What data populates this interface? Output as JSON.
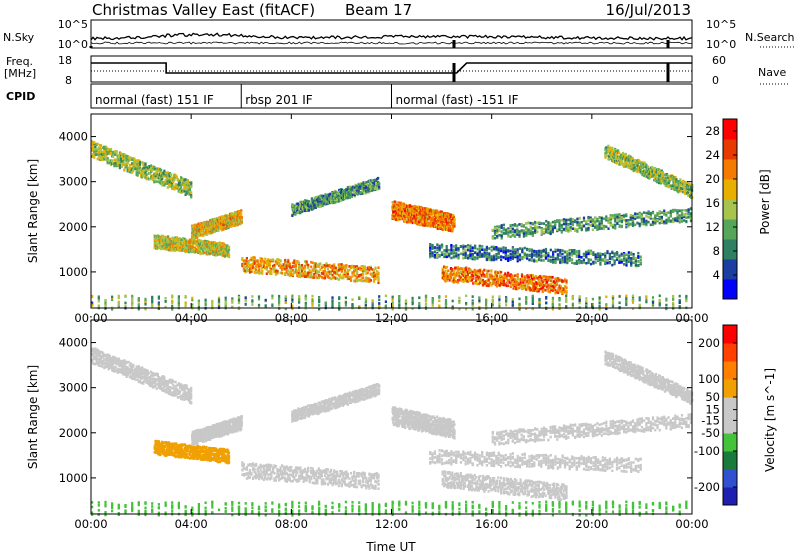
{
  "header": {
    "station": "Christmas Valley East (fitACF)",
    "beam": "Beam 17",
    "date": "16/Jul/2013"
  },
  "top_panels": {
    "nsky_label": "N.Sky",
    "nsky_ticks": [
      "10^5",
      "10^0"
    ],
    "nsearch_label": "N.Search",
    "nsearch_ticks": [
      "10^5",
      "10^0"
    ],
    "freq_label": "Freq.",
    "freq_unit": "[MHz]",
    "freq_ticks": [
      "18",
      "8"
    ],
    "nave_label": "Nave",
    "nave_ticks": [
      "60",
      "0"
    ],
    "cpid_label": "CPID",
    "cpid_segments": [
      {
        "label": "normal (fast) 151 IF",
        "start_h": 0.0,
        "end_h": 6.0
      },
      {
        "label": "rbsp 201 IF",
        "start_h": 6.0,
        "end_h": 12.0
      },
      {
        "label": "normal (fast) -151 IF",
        "start_h": 12.0,
        "end_h": 24.0
      }
    ]
  },
  "colors": {
    "power_scale": [
      "#0000ff",
      "#1a3fa0",
      "#2f7f62",
      "#55a65a",
      "#a7c54e",
      "#e7b000",
      "#f57a00",
      "#e63a00",
      "#ff0000"
    ],
    "velocity_scale": [
      "#2020b0",
      "#3050d0",
      "#1a7a3a",
      "#44c33a",
      "#c8c8c8",
      "#c8c8c8",
      "#f0a000",
      "#ff8000",
      "#ff4000",
      "#ff0000"
    ],
    "axis": "#000000"
  },
  "chart_data": [
    {
      "type": "heatmap",
      "title": "Power",
      "xlabel": "Time UT",
      "ylabel": "Slant Range [km]",
      "xlim_hours": [
        0,
        24
      ],
      "ylim_km": [
        200,
        4500
      ],
      "x_ticks": [
        "00:00",
        "04:00",
        "08:00",
        "12:00",
        "16:00",
        "20:00",
        "00:00"
      ],
      "y_ticks": [
        1000,
        2000,
        3000,
        4000
      ],
      "colorbar": {
        "label": "Power [dB]",
        "ticks": [
          4,
          8,
          12,
          16,
          20,
          24,
          28
        ],
        "range": [
          0,
          30
        ]
      },
      "echo_bands": [
        {
          "t_start": 0.0,
          "t_end": 4.0,
          "r_start": 3750,
          "r_end": 2850,
          "width": 350,
          "value": 14
        },
        {
          "t_start": 2.5,
          "t_end": 5.5,
          "r_start": 1700,
          "r_end": 1500,
          "width": 300,
          "value": 16
        },
        {
          "t_start": 4.0,
          "t_end": 6.0,
          "r_start": 1900,
          "r_end": 2250,
          "width": 300,
          "value": 18
        },
        {
          "t_start": 6.0,
          "t_end": 11.5,
          "r_start": 1200,
          "r_end": 950,
          "width": 350,
          "value": 20
        },
        {
          "t_start": 8.0,
          "t_end": 11.5,
          "r_start": 2400,
          "r_end": 3000,
          "width": 250,
          "value": 10
        },
        {
          "t_start": 12.0,
          "t_end": 14.5,
          "r_start": 2400,
          "r_end": 2100,
          "width": 400,
          "value": 22
        },
        {
          "t_start": 13.5,
          "t_end": 22.0,
          "r_start": 1500,
          "r_end": 1300,
          "width": 300,
          "value": 8
        },
        {
          "t_start": 14.0,
          "t_end": 19.0,
          "r_start": 1000,
          "r_end": 700,
          "width": 350,
          "value": 22
        },
        {
          "t_start": 16.0,
          "t_end": 24.0,
          "r_start": 1900,
          "r_end": 2300,
          "width": 300,
          "value": 10
        },
        {
          "t_start": 20.5,
          "t_end": 24.0,
          "r_start": 3700,
          "r_end": 2800,
          "width": 300,
          "value": 14
        },
        {
          "t_start": 0.0,
          "t_end": 24.0,
          "r_start": 350,
          "r_end": 350,
          "width": 300,
          "value": 12
        }
      ]
    },
    {
      "type": "heatmap",
      "title": "Velocity",
      "xlabel": "Time UT",
      "ylabel": "Slant Range [km]",
      "xlim_hours": [
        0,
        24
      ],
      "ylim_km": [
        200,
        4500
      ],
      "x_ticks": [
        "00:00",
        "04:00",
        "08:00",
        "12:00",
        "16:00",
        "20:00",
        "00:00"
      ],
      "y_ticks": [
        1000,
        2000,
        3000,
        4000
      ],
      "colorbar": {
        "label": "Velocity [m s^-1]",
        "ticks": [
          200,
          100,
          50,
          15,
          -15,
          -50,
          -100,
          -200
        ],
        "range": [
          -250,
          250
        ]
      },
      "echo_bands": [
        {
          "t_start": 0.0,
          "t_end": 4.0,
          "r_start": 3750,
          "r_end": 2850,
          "width": 350,
          "value": 0
        },
        {
          "t_start": 2.5,
          "t_end": 5.5,
          "r_start": 1700,
          "r_end": 1500,
          "width": 300,
          "value": 60
        },
        {
          "t_start": 4.0,
          "t_end": 6.0,
          "r_start": 1900,
          "r_end": 2250,
          "width": 300,
          "value": 0
        },
        {
          "t_start": 6.0,
          "t_end": 11.5,
          "r_start": 1200,
          "r_end": 950,
          "width": 350,
          "value": 0
        },
        {
          "t_start": 8.0,
          "t_end": 11.5,
          "r_start": 2400,
          "r_end": 3000,
          "width": 250,
          "value": 20
        },
        {
          "t_start": 12.0,
          "t_end": 14.5,
          "r_start": 2400,
          "r_end": 2100,
          "width": 400,
          "value": 30
        },
        {
          "t_start": 13.5,
          "t_end": 22.0,
          "r_start": 1500,
          "r_end": 1300,
          "width": 300,
          "value": 0
        },
        {
          "t_start": 14.0,
          "t_end": 19.0,
          "r_start": 1000,
          "r_end": 700,
          "width": 350,
          "value": 0
        },
        {
          "t_start": 16.0,
          "t_end": 24.0,
          "r_start": 1900,
          "r_end": 2300,
          "width": 300,
          "value": -10
        },
        {
          "t_start": 20.5,
          "t_end": 24.0,
          "r_start": 3700,
          "r_end": 2800,
          "width": 300,
          "value": 0
        },
        {
          "t_start": 0.0,
          "t_end": 24.0,
          "r_start": 350,
          "r_end": 350,
          "width": 300,
          "value": -60
        }
      ]
    }
  ]
}
